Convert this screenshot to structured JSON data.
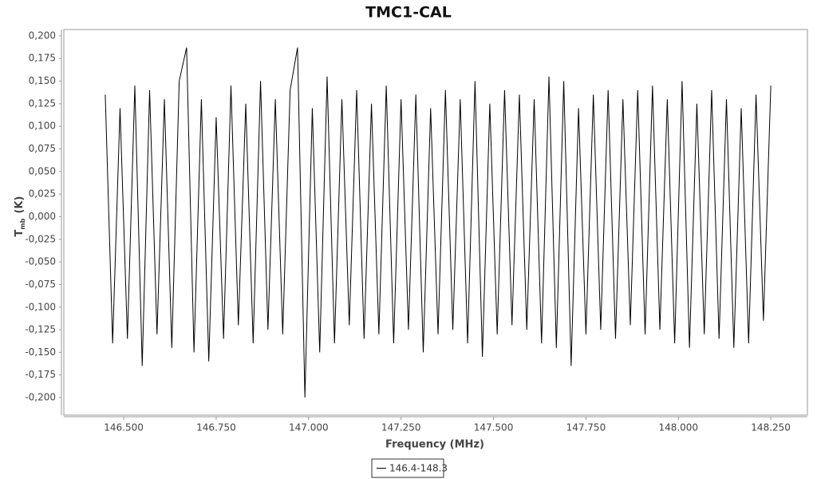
{
  "chart_data": {
    "type": "line",
    "title": "TMC1-CAL",
    "x_label": "Frequency (MHz)",
    "y_label": "T",
    "y_label_sub": "mb",
    "y_label_unit": "(K)",
    "x": [
      146.45,
      146.47,
      146.49,
      146.51,
      146.53,
      146.55,
      146.57,
      146.59,
      146.61,
      146.63,
      146.65,
      146.67,
      146.69,
      146.71,
      146.73,
      146.75,
      146.77,
      146.79,
      146.81,
      146.83,
      146.85,
      146.87,
      146.89,
      146.91,
      146.93,
      146.95,
      146.97,
      146.99,
      147.01,
      147.03,
      147.05,
      147.07,
      147.09,
      147.11,
      147.13,
      147.15,
      147.17,
      147.19,
      147.21,
      147.23,
      147.25,
      147.27,
      147.29,
      147.31,
      147.33,
      147.35,
      147.37,
      147.39,
      147.41,
      147.43,
      147.45,
      147.47,
      147.49,
      147.51,
      147.53,
      147.55,
      147.57,
      147.59,
      147.61,
      147.63,
      147.65,
      147.67,
      147.69,
      147.71,
      147.73,
      147.75,
      147.77,
      147.79,
      147.81,
      147.83,
      147.85,
      147.87,
      147.89,
      147.91,
      147.93,
      147.95,
      147.97,
      147.99,
      148.01,
      148.03,
      148.05,
      148.07,
      148.09,
      148.11,
      148.13,
      148.15,
      148.17,
      148.19,
      148.21,
      148.23,
      148.25
    ],
    "series": [
      {
        "name": "146.4-148.3",
        "color": "#000000",
        "values": [
          0.135,
          -0.14,
          0.12,
          -0.135,
          0.145,
          -0.165,
          0.14,
          -0.13,
          0.13,
          -0.145,
          0.15,
          0.187,
          -0.15,
          0.13,
          -0.16,
          0.11,
          -0.135,
          0.145,
          -0.12,
          0.125,
          -0.14,
          0.15,
          -0.125,
          0.13,
          -0.13,
          0.14,
          0.187,
          -0.2,
          0.12,
          -0.15,
          0.155,
          -0.14,
          0.13,
          -0.12,
          0.14,
          -0.135,
          0.125,
          -0.13,
          0.145,
          -0.14,
          0.13,
          -0.125,
          0.135,
          -0.15,
          0.12,
          -0.13,
          0.14,
          -0.125,
          0.13,
          -0.14,
          0.15,
          -0.155,
          0.125,
          -0.13,
          0.14,
          -0.12,
          0.135,
          -0.125,
          0.13,
          -0.14,
          0.155,
          -0.145,
          0.15,
          -0.165,
          0.12,
          -0.13,
          0.135,
          -0.125,
          0.14,
          -0.135,
          0.13,
          -0.12,
          0.14,
          -0.13,
          0.145,
          -0.125,
          0.13,
          -0.14,
          0.15,
          -0.145,
          0.125,
          -0.13,
          0.14,
          -0.135,
          0.13,
          -0.145,
          0.12,
          -0.14,
          0.135,
          -0.115,
          0.145
        ]
      }
    ],
    "xlim": [
      146.338,
      148.349
    ],
    "ylim": [
      -0.2194,
      0.207
    ],
    "xticks": [
      {
        "value": 146.5,
        "label": "146.500"
      },
      {
        "value": 146.75,
        "label": "146.750"
      },
      {
        "value": 147,
        "label": "147.000"
      },
      {
        "value": 147.25,
        "label": "147.250"
      },
      {
        "value": 147.5,
        "label": "147.500"
      },
      {
        "value": 147.75,
        "label": "147.750"
      },
      {
        "value": 148,
        "label": "148.000"
      },
      {
        "value": 148.25,
        "label": "148.250"
      }
    ],
    "yticks": [
      {
        "value": 0.2,
        "label": "0,200"
      },
      {
        "value": 0.175,
        "label": "0,175"
      },
      {
        "value": 0.15,
        "label": "0,150"
      },
      {
        "value": 0.125,
        "label": "0,125"
      },
      {
        "value": 0.1,
        "label": "0,100"
      },
      {
        "value": 0.075,
        "label": "0,075"
      },
      {
        "value": 0.05,
        "label": "0,050"
      },
      {
        "value": 0.025,
        "label": "0,025"
      },
      {
        "value": 0,
        "label": "0,000"
      },
      {
        "value": -0.025,
        "label": "-0,025"
      },
      {
        "value": -0.05,
        "label": "-0,050"
      },
      {
        "value": -0.075,
        "label": "-0,075"
      },
      {
        "value": -0.1,
        "label": "-0,100"
      },
      {
        "value": -0.125,
        "label": "-0,125"
      },
      {
        "value": -0.15,
        "label": "-0,150"
      },
      {
        "value": -0.175,
        "label": "-0,175"
      },
      {
        "value": -0.2,
        "label": "-0,200"
      }
    ],
    "grid": false,
    "legend": "bottom"
  }
}
